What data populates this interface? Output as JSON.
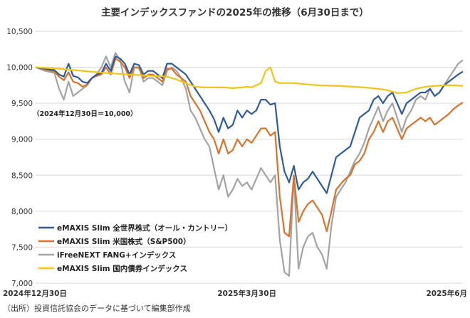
{
  "chart_data": {
    "type": "line",
    "title": "主要インデックスファンドの2025年の推移（6月30日まで）",
    "xlabel": "",
    "ylabel": "",
    "ylim": [
      7000,
      10500
    ],
    "yticks": [
      "10,500",
      "10,000",
      "9,500",
      "9,000",
      "8,500",
      "8,000",
      "7,500",
      "7,000"
    ],
    "ytick_values": [
      10500,
      10000,
      9500,
      9000,
      8500,
      8000,
      7500,
      7000
    ],
    "x_ticks": [
      {
        "t": 0,
        "label": "2024年12月30日"
      },
      {
        "t": 90,
        "label": "2025年3月30日"
      },
      {
        "t": 182,
        "label": "2025年6月"
      }
    ],
    "x_range": [
      0,
      182
    ],
    "annotation": "（2024年12月30日＝10,000）",
    "grid": true,
    "legend_position": "bottom-left",
    "series": [
      {
        "name": "eMAXIS Slim 全世界株式（オール・カントリー）",
        "color": "#2f5b98",
        "points": [
          [
            0,
            10000
          ],
          [
            4,
            9980
          ],
          [
            8,
            9960
          ],
          [
            10,
            9900
          ],
          [
            12,
            9870
          ],
          [
            14,
            10050
          ],
          [
            16,
            9880
          ],
          [
            18,
            9860
          ],
          [
            20,
            9800
          ],
          [
            22,
            9780
          ],
          [
            24,
            9850
          ],
          [
            26,
            9900
          ],
          [
            28,
            9920
          ],
          [
            30,
            10050
          ],
          [
            32,
            9950
          ],
          [
            34,
            10150
          ],
          [
            36,
            10120
          ],
          [
            38,
            10050
          ],
          [
            40,
            9900
          ],
          [
            42,
            10050
          ],
          [
            44,
            10030
          ],
          [
            46,
            9900
          ],
          [
            48,
            9950
          ],
          [
            50,
            9950
          ],
          [
            52,
            9900
          ],
          [
            54,
            9850
          ],
          [
            56,
            10050
          ],
          [
            58,
            10050
          ],
          [
            60,
            10000
          ],
          [
            62,
            9950
          ],
          [
            64,
            9900
          ],
          [
            66,
            9800
          ],
          [
            68,
            9700
          ],
          [
            70,
            9600
          ],
          [
            72,
            9500
          ],
          [
            74,
            9400
          ],
          [
            76,
            9280
          ],
          [
            78,
            9100
          ],
          [
            80,
            9300
          ],
          [
            82,
            9150
          ],
          [
            84,
            9200
          ],
          [
            86,
            9400
          ],
          [
            88,
            9300
          ],
          [
            90,
            9400
          ],
          [
            92,
            9350
          ],
          [
            94,
            9400
          ],
          [
            96,
            9550
          ],
          [
            98,
            9550
          ],
          [
            100,
            9480
          ],
          [
            102,
            9500
          ],
          [
            104,
            8900
          ],
          [
            106,
            8550
          ],
          [
            108,
            8400
          ],
          [
            110,
            8630
          ],
          [
            112,
            8300
          ],
          [
            114,
            8400
          ],
          [
            116,
            8450
          ],
          [
            118,
            8550
          ],
          [
            120,
            8450
          ],
          [
            122,
            8350
          ],
          [
            124,
            8250
          ],
          [
            126,
            8500
          ],
          [
            128,
            8750
          ],
          [
            130,
            8800
          ],
          [
            132,
            8850
          ],
          [
            134,
            8900
          ],
          [
            136,
            9100
          ],
          [
            138,
            9300
          ],
          [
            140,
            9350
          ],
          [
            142,
            9400
          ],
          [
            144,
            9550
          ],
          [
            146,
            9600
          ],
          [
            148,
            9500
          ],
          [
            150,
            9600
          ],
          [
            152,
            9650
          ],
          [
            154,
            9500
          ],
          [
            156,
            9350
          ],
          [
            158,
            9500
          ],
          [
            160,
            9550
          ],
          [
            162,
            9600
          ],
          [
            164,
            9650
          ],
          [
            166,
            9650
          ],
          [
            168,
            9700
          ],
          [
            170,
            9600
          ],
          [
            172,
            9650
          ],
          [
            174,
            9750
          ],
          [
            176,
            9800
          ],
          [
            178,
            9850
          ],
          [
            180,
            9900
          ],
          [
            182,
            9940
          ]
        ]
      },
      {
        "name": "eMAXIS Slim 米国株式（S&P500）",
        "color": "#d8732b",
        "points": [
          [
            0,
            10000
          ],
          [
            4,
            9970
          ],
          [
            8,
            9940
          ],
          [
            10,
            9870
          ],
          [
            12,
            9820
          ],
          [
            14,
            9930
          ],
          [
            16,
            9800
          ],
          [
            18,
            9780
          ],
          [
            20,
            9730
          ],
          [
            22,
            9760
          ],
          [
            24,
            9850
          ],
          [
            26,
            9880
          ],
          [
            28,
            9900
          ],
          [
            30,
            10000
          ],
          [
            32,
            9900
          ],
          [
            34,
            10120
          ],
          [
            36,
            10080
          ],
          [
            38,
            10000
          ],
          [
            40,
            9850
          ],
          [
            42,
            10000
          ],
          [
            44,
            9990
          ],
          [
            46,
            9850
          ],
          [
            48,
            9900
          ],
          [
            50,
            9900
          ],
          [
            52,
            9850
          ],
          [
            54,
            9800
          ],
          [
            56,
            9980
          ],
          [
            58,
            9980
          ],
          [
            60,
            9900
          ],
          [
            62,
            9850
          ],
          [
            64,
            9800
          ],
          [
            66,
            9600
          ],
          [
            68,
            9500
          ],
          [
            70,
            9400
          ],
          [
            72,
            9250
          ],
          [
            74,
            9100
          ],
          [
            76,
            9000
          ],
          [
            78,
            8800
          ],
          [
            80,
            9000
          ],
          [
            82,
            8800
          ],
          [
            84,
            8850
          ],
          [
            86,
            9000
          ],
          [
            88,
            8900
          ],
          [
            90,
            9000
          ],
          [
            92,
            8950
          ],
          [
            94,
            9050
          ],
          [
            96,
            9150
          ],
          [
            98,
            9150
          ],
          [
            100,
            9050
          ],
          [
            102,
            9100
          ],
          [
            104,
            8200
          ],
          [
            106,
            7700
          ],
          [
            108,
            7650
          ],
          [
            110,
            8500
          ],
          [
            112,
            7850
          ],
          [
            114,
            8000
          ],
          [
            116,
            8100
          ],
          [
            118,
            8150
          ],
          [
            120,
            8050
          ],
          [
            122,
            7950
          ],
          [
            124,
            7720
          ],
          [
            126,
            8000
          ],
          [
            128,
            8300
          ],
          [
            130,
            8380
          ],
          [
            132,
            8450
          ],
          [
            134,
            8500
          ],
          [
            136,
            8650
          ],
          [
            138,
            8700
          ],
          [
            140,
            8800
          ],
          [
            142,
            9000
          ],
          [
            144,
            9100
          ],
          [
            146,
            9250
          ],
          [
            148,
            9100
          ],
          [
            150,
            9250
          ],
          [
            152,
            9300
          ],
          [
            154,
            9150
          ],
          [
            156,
            9000
          ],
          [
            158,
            9150
          ],
          [
            160,
            9200
          ],
          [
            162,
            9250
          ],
          [
            164,
            9300
          ],
          [
            166,
            9250
          ],
          [
            168,
            9300
          ],
          [
            170,
            9200
          ],
          [
            172,
            9250
          ],
          [
            174,
            9300
          ],
          [
            176,
            9350
          ],
          [
            178,
            9420
          ],
          [
            180,
            9470
          ],
          [
            182,
            9510
          ]
        ]
      },
      {
        "name": "iFreeNEXT FANG+インデックス",
        "color": "#a3a3a3",
        "points": [
          [
            0,
            10000
          ],
          [
            4,
            9950
          ],
          [
            8,
            9920
          ],
          [
            10,
            9700
          ],
          [
            12,
            9550
          ],
          [
            14,
            9800
          ],
          [
            16,
            9600
          ],
          [
            18,
            9650
          ],
          [
            20,
            9700
          ],
          [
            22,
            9750
          ],
          [
            24,
            9850
          ],
          [
            26,
            9900
          ],
          [
            28,
            10000
          ],
          [
            30,
            10150
          ],
          [
            32,
            10000
          ],
          [
            34,
            10200
          ],
          [
            36,
            10100
          ],
          [
            38,
            9800
          ],
          [
            40,
            9650
          ],
          [
            42,
            10000
          ],
          [
            44,
            10000
          ],
          [
            46,
            9800
          ],
          [
            48,
            9850
          ],
          [
            50,
            9850
          ],
          [
            52,
            9800
          ],
          [
            54,
            9750
          ],
          [
            56,
            9950
          ],
          [
            58,
            10000
          ],
          [
            60,
            9950
          ],
          [
            62,
            9850
          ],
          [
            64,
            9700
          ],
          [
            66,
            9400
          ],
          [
            68,
            9300
          ],
          [
            70,
            9150
          ],
          [
            72,
            9000
          ],
          [
            74,
            8900
          ],
          [
            76,
            8600
          ],
          [
            78,
            8300
          ],
          [
            80,
            8500
          ],
          [
            82,
            8200
          ],
          [
            84,
            8300
          ],
          [
            86,
            8450
          ],
          [
            88,
            8350
          ],
          [
            90,
            8400
          ],
          [
            92,
            8300
          ],
          [
            94,
            8450
          ],
          [
            96,
            8600
          ],
          [
            98,
            8500
          ],
          [
            100,
            8400
          ],
          [
            102,
            8500
          ],
          [
            104,
            7600
          ],
          [
            106,
            7150
          ],
          [
            108,
            7100
          ],
          [
            110,
            8500
          ],
          [
            112,
            7200
          ],
          [
            114,
            7500
          ],
          [
            116,
            7650
          ],
          [
            118,
            7700
          ],
          [
            120,
            7500
          ],
          [
            122,
            7400
          ],
          [
            124,
            7200
          ],
          [
            126,
            7800
          ],
          [
            128,
            8200
          ],
          [
            130,
            8300
          ],
          [
            132,
            8400
          ],
          [
            134,
            8550
          ],
          [
            136,
            8700
          ],
          [
            138,
            8800
          ],
          [
            140,
            8950
          ],
          [
            142,
            9150
          ],
          [
            144,
            9300
          ],
          [
            146,
            9450
          ],
          [
            148,
            9250
          ],
          [
            150,
            9400
          ],
          [
            152,
            9500
          ],
          [
            154,
            9300
          ],
          [
            156,
            9100
          ],
          [
            158,
            9300
          ],
          [
            160,
            9400
          ],
          [
            162,
            9550
          ],
          [
            164,
            9600
          ],
          [
            166,
            9550
          ],
          [
            168,
            9700
          ],
          [
            170,
            9600
          ],
          [
            172,
            9650
          ],
          [
            174,
            9750
          ],
          [
            176,
            9850
          ],
          [
            178,
            9950
          ],
          [
            180,
            10050
          ],
          [
            182,
            10100
          ]
        ]
      },
      {
        "name": "eMAXIS Slim 国内債券インデックス",
        "color": "#f0c419",
        "points": [
          [
            0,
            10000
          ],
          [
            10,
            9980
          ],
          [
            20,
            9950
          ],
          [
            30,
            9920
          ],
          [
            40,
            9900
          ],
          [
            50,
            9880
          ],
          [
            56,
            9870
          ],
          [
            60,
            9830
          ],
          [
            64,
            9780
          ],
          [
            68,
            9730
          ],
          [
            72,
            9720
          ],
          [
            76,
            9720
          ],
          [
            80,
            9720
          ],
          [
            84,
            9710
          ],
          [
            88,
            9720
          ],
          [
            90,
            9730
          ],
          [
            92,
            9720
          ],
          [
            96,
            9780
          ],
          [
            98,
            9950
          ],
          [
            100,
            10000
          ],
          [
            102,
            9800
          ],
          [
            104,
            9780
          ],
          [
            110,
            9780
          ],
          [
            120,
            9750
          ],
          [
            130,
            9740
          ],
          [
            140,
            9720
          ],
          [
            146,
            9700
          ],
          [
            150,
            9680
          ],
          [
            154,
            9640
          ],
          [
            158,
            9650
          ],
          [
            162,
            9700
          ],
          [
            166,
            9730
          ],
          [
            170,
            9740
          ],
          [
            174,
            9750
          ],
          [
            178,
            9750
          ],
          [
            182,
            9740
          ]
        ]
      }
    ]
  },
  "source_note": "（出所）投資信託協会のデータに基づいて編集部作成"
}
